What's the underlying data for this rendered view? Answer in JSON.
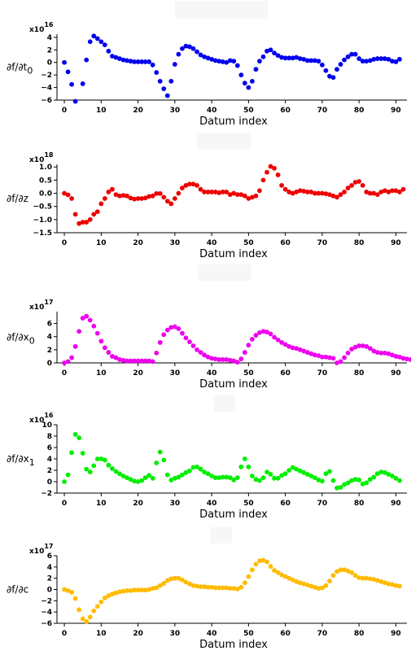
{
  "chart_data": [
    {
      "type": "scatter",
      "xlabel": "Datum index",
      "ylabel": "∂f/∂t",
      "ylabel_sub": "0",
      "multiplier_base": "x10",
      "multiplier_exp": "16",
      "color": "#0000ee",
      "xlim": [
        -2,
        93
      ],
      "ylim": [
        -6,
        4.5
      ],
      "xticks": [
        0,
        10,
        20,
        30,
        40,
        50,
        60,
        70,
        80,
        90
      ],
      "yticks": [
        -6,
        -4,
        -2,
        0,
        2,
        4
      ],
      "ytick_labels": [
        "−6",
        "−4",
        "−2",
        "0",
        "2",
        "4"
      ],
      "series": [
        {
          "values": [
            0,
            -1.5,
            -3.5,
            -6.2,
            null,
            -3.4,
            0.4,
            3.3,
            4.2,
            3.8,
            3.3,
            2.8,
            1.8,
            1,
            0.8,
            0.6,
            0.4,
            0.3,
            0.2,
            0.1,
            0.1,
            0.1,
            0.1,
            0.1,
            -0.4,
            -1.6,
            -3,
            -4.2,
            -5.3,
            -3,
            -0.3,
            1.3,
            2.2,
            2.6,
            2.5,
            2.2,
            1.7,
            1.2,
            0.9,
            0.7,
            0.5,
            0.3,
            0.2,
            0.1,
            0,
            0.3,
            0.2,
            -0.5,
            -2,
            -3.3,
            -4,
            -3,
            -1.1,
            0.2,
            0.9,
            1.8,
            2,
            1.5,
            1.1,
            0.8,
            0.7,
            0.7,
            0.7,
            0.8,
            0.6,
            0.5,
            0.3,
            0.3,
            0.3,
            0.2,
            -0.4,
            -1.3,
            -2.2,
            -2.4,
            -1.1,
            -0.3,
            0.4,
            0.9,
            1.3,
            1.3,
            0.6,
            0.2,
            0.2,
            0.3,
            0.5,
            0.6,
            0.6,
            0.6,
            0.5,
            0.2,
            0.1,
            0.5
          ]
        }
      ]
    },
    {
      "type": "scatter",
      "xlabel": "Datum index",
      "ylabel": "∂f/∂z",
      "ylabel_sub": "",
      "multiplier_base": "x10",
      "multiplier_exp": "18",
      "color": "#ee0000",
      "xlim": [
        -2,
        93
      ],
      "ylim": [
        -1.5,
        1.1
      ],
      "xticks": [
        0,
        10,
        20,
        30,
        40,
        50,
        60,
        70,
        80,
        90
      ],
      "yticks": [
        -1.5,
        -1.0,
        -0.5,
        0.0,
        0.5,
        1.0
      ],
      "ytick_labels": [
        "−1.5",
        "−1.0",
        "−0.5",
        "0.0",
        "0.5",
        "1.0"
      ],
      "series": [
        {
          "values": [
            0,
            -0.06,
            -0.2,
            -0.8,
            -1.15,
            -1.1,
            -1.1,
            -1,
            -0.8,
            -0.7,
            -0.4,
            -0.2,
            0.05,
            0.15,
            -0.05,
            -0.1,
            -0.08,
            -0.1,
            -0.18,
            -0.22,
            -0.2,
            -0.2,
            -0.18,
            -0.12,
            -0.1,
            -0.01,
            -0.01,
            -0.15,
            -0.3,
            -0.4,
            -0.2,
            0,
            0.2,
            0.3,
            0.35,
            0.35,
            0.3,
            0.15,
            0.05,
            0.05,
            0.05,
            0.05,
            0.02,
            0.05,
            0.05,
            -0.05,
            0,
            -0.05,
            -0.05,
            -0.1,
            -0.2,
            -0.15,
            -0.1,
            0.1,
            0.5,
            0.8,
            1.02,
            0.95,
            0.7,
            0.3,
            0.15,
            0.05,
            0,
            0.05,
            0.1,
            0.08,
            0.05,
            0.05,
            0,
            0,
            0,
            -0.02,
            -0.05,
            -0.1,
            -0.15,
            -0.05,
            0.05,
            0.2,
            0.3,
            0.42,
            0.45,
            0.3,
            0.05,
            0,
            0,
            -0.05,
            0.05,
            0.1,
            0.05,
            0.1,
            0.1,
            0.05,
            0.15
          ]
        }
      ]
    },
    {
      "type": "scatter",
      "xlabel": "Datum index",
      "ylabel": "∂f/∂x",
      "ylabel_sub": "0",
      "multiplier_base": "x10",
      "multiplier_exp": "17",
      "color": "#ee00ee",
      "xlim": [
        -2,
        93
      ],
      "ylim": [
        0,
        7.8
      ],
      "xticks": [
        0,
        10,
        20,
        30,
        40,
        50,
        60,
        70,
        80,
        90
      ],
      "yticks": [
        0,
        2,
        4,
        6
      ],
      "ytick_labels": [
        "0",
        "2",
        "4",
        "6"
      ],
      "series": [
        {
          "values": [
            0,
            0.2,
            0.8,
            2.5,
            4.8,
            6.8,
            7.1,
            6.5,
            5.6,
            4.5,
            3.3,
            2.3,
            1.6,
            1,
            0.8,
            0.5,
            0.4,
            0.3,
            0.3,
            0.3,
            0.3,
            0.3,
            0.3,
            0.3,
            0.2,
            1.5,
            3.1,
            4.3,
            5,
            5.4,
            5.5,
            5.2,
            4.5,
            3.8,
            3.2,
            2.6,
            2,
            1.6,
            1.2,
            0.9,
            0.7,
            0.6,
            0.5,
            0.5,
            0.5,
            0.4,
            0.3,
            0.1,
            0.6,
            1.6,
            2.7,
            3.6,
            4.2,
            4.6,
            4.8,
            4.7,
            4.4,
            3.9,
            3.5,
            3.1,
            2.8,
            2.5,
            2.3,
            2.2,
            2,
            1.8,
            1.6,
            1.4,
            1.2,
            1.1,
            0.9,
            0.9,
            0.8,
            0.7,
            0,
            0.2,
            0.8,
            1.5,
            2.1,
            2.4,
            2.6,
            2.6,
            2.5,
            2.2,
            1.8,
            1.6,
            1.5,
            1.5,
            1.4,
            1.2,
            1,
            0.9,
            0.7,
            0.6,
            0.5
          ]
        }
      ]
    },
    {
      "type": "scatter",
      "xlabel": "Datum index",
      "ylabel": "∂f/∂x",
      "ylabel_sub": "1",
      "multiplier_base": "x10",
      "multiplier_exp": "16",
      "color": "#00ee00",
      "xlim": [
        -2,
        93
      ],
      "ylim": [
        -2,
        10
      ],
      "xticks": [
        0,
        10,
        20,
        30,
        40,
        50,
        60,
        70,
        80,
        90
      ],
      "yticks": [
        -2,
        0,
        2,
        4,
        6,
        8,
        10
      ],
      "ytick_labels": [
        "−2",
        "0",
        "2",
        "4",
        "6",
        "8",
        "10"
      ],
      "series": [
        {
          "values": [
            0,
            1.2,
            5.1,
            8.3,
            7.7,
            5,
            2.2,
            1.7,
            2.8,
            4,
            4,
            3.8,
            2.9,
            2.3,
            1.8,
            1.4,
            1,
            0.7,
            0.4,
            0.1,
            0,
            0.2,
            0.7,
            1.1,
            0.6,
            3.3,
            5.2,
            3.8,
            1.2,
            0.3,
            0.6,
            0.8,
            1.2,
            1.6,
            1.9,
            2.5,
            2.6,
            2.2,
            1.7,
            1.4,
            1,
            0.7,
            0.7,
            0.8,
            0.8,
            0.7,
            0.3,
            0.7,
            2.6,
            4,
            2.6,
            1,
            0.4,
            0.2,
            0.7,
            1.7,
            1.3,
            0.6,
            0.6,
            1.1,
            1.4,
            2,
            2.5,
            2.2,
            1.9,
            1.6,
            1.3,
            1,
            0.7,
            0.3,
            0.1,
            1.4,
            1.8,
            0.2,
            -1.1,
            -1,
            -0.5,
            -0.2,
            0.2,
            0.4,
            0.3,
            -0.4,
            -0.2,
            0.4,
            0.8,
            1.4,
            1.7,
            1.6,
            1.3,
            1,
            0.6,
            0.2
          ]
        }
      ]
    },
    {
      "type": "scatter",
      "xlabel": "Datum index",
      "ylabel": "∂f/∂c",
      "ylabel_sub": "",
      "multiplier_base": "x10",
      "multiplier_exp": "17",
      "color": "#ffbb00",
      "xlim": [
        -2,
        93
      ],
      "ylim": [
        -6,
        6
      ],
      "xticks": [
        0,
        10,
        20,
        30,
        40,
        50,
        60,
        70,
        80,
        90
      ],
      "yticks": [
        -6,
        -4,
        -2,
        0,
        2,
        4,
        6
      ],
      "ytick_labels": [
        "−6",
        "−4",
        "−2",
        "0",
        "2",
        "4",
        "6"
      ],
      "series": [
        {
          "values": [
            0,
            -0.2,
            -0.5,
            -1.6,
            -3.6,
            -5.2,
            -5.7,
            -4.9,
            -3.8,
            -3,
            -2.2,
            -1.5,
            -1.1,
            -0.8,
            -0.6,
            -0.4,
            -0.3,
            -0.2,
            -0.2,
            -0.1,
            -0.1,
            -0.1,
            -0.1,
            0,
            0.2,
            0.3,
            0.7,
            1.1,
            1.6,
            1.9,
            2,
            2,
            1.7,
            1.3,
            1,
            0.7,
            0.6,
            0.5,
            0.5,
            0.4,
            0.4,
            0.3,
            0.3,
            0.3,
            0.3,
            0.2,
            0.2,
            0.1,
            0.4,
            1.2,
            2.3,
            3.5,
            4.5,
            5.1,
            5.2,
            4.9,
            4.1,
            3.4,
            3,
            2.6,
            2.3,
            2,
            1.7,
            1.4,
            1.2,
            1,
            0.8,
            0.6,
            0.4,
            0.2,
            0.3,
            0.7,
            1.5,
            2.5,
            3.2,
            3.5,
            3.5,
            3.3,
            3,
            2.5,
            2.1,
            2,
            2,
            1.9,
            1.8,
            1.6,
            1.4,
            1.2,
            1,
            0.9,
            0.7,
            0.6
          ]
        }
      ]
    }
  ]
}
